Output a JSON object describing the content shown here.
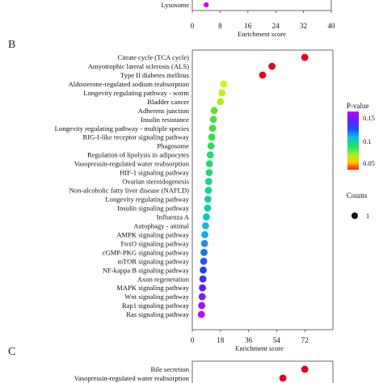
{
  "panels": {
    "a": {
      "terms": [
        "Lysosome"
      ],
      "enrichment": [
        4
      ],
      "pvalue_colors": [
        "#d300ff"
      ],
      "xticks": [
        "0",
        "8",
        "16",
        "24",
        "32",
        "40"
      ],
      "xlim": [
        0,
        40
      ],
      "xlabel": "Enrichment score"
    },
    "b": {
      "letter": "B",
      "xlabel": "Enrichment score",
      "xticks": [
        "0",
        "18",
        "36",
        "54",
        "72"
      ],
      "xlim": [
        0,
        90
      ]
    },
    "c": {
      "letter": "C",
      "terms": [
        "Bile secretion",
        "Vasopressin-regulated water reabsorption"
      ],
      "enrichment": [
        72,
        58
      ],
      "pvalue_colors": [
        "#e8001d",
        "#e8001d"
      ]
    }
  },
  "legend": {
    "pvalue_title": "P-value",
    "pvalue_ticks": [
      "0.15",
      "0.1",
      "0.05"
    ],
    "counts_title": "Counts",
    "counts_value": "1"
  },
  "chart_data": {
    "type": "scatter",
    "title": "",
    "xlabel": "Enrichment score",
    "ylabel": "",
    "xlim": [
      0,
      90
    ],
    "color_scale": "P-value",
    "size_scale": "Counts",
    "categories": [
      "Citrate cycle (TCA cycle)",
      "Amyotrophic lateral sclerosis (ALS)",
      "Type II diabetes mellitus",
      "Aldosterone-regulated sodium reabsorption",
      "Longevity regulating pathway - worm",
      "Bladder cancer",
      "Adherens junction",
      "Insulin resistance",
      "Longevity regulating pathway - multiple species",
      "RIG-I-like receptor signaling pathway",
      "Phagosome",
      "Regulation of lipolysis in adipocytes",
      "Vasopressin-regulated water reabsorption",
      "HIF-1 signaling pathway",
      "Ovarian steroidogenesis",
      "Non-alcoholic fatty liver disease (NAFLD)",
      "Longevity regulating pathway",
      "Insulin signaling pathway",
      "Influenza A",
      "Autophagy - animal",
      "AMPK signaling pathway",
      "FoxO signaling pathway",
      "cGMP-PKG signaling pathway",
      "mTOR signaling pathway",
      "NF-kappa B signaling pathway",
      "Axon regeneration",
      "MAPK signaling pathway",
      "Wnt signaling pathway",
      "Rap1 signaling pathway",
      "Ras signaling pathway"
    ],
    "values": [
      72,
      51,
      45,
      20,
      19,
      18,
      14,
      13.5,
      13,
      12.5,
      12,
      11.5,
      11,
      10.8,
      10.5,
      10.3,
      10,
      9.8,
      9,
      8.5,
      8,
      7.8,
      7.5,
      7.3,
      7,
      6.8,
      6.5,
      6.3,
      6,
      5.8
    ],
    "colors": [
      "#e8001d",
      "#e8001d",
      "#e8001d",
      "#d8f020",
      "#c4ee1c",
      "#b4ea1c",
      "#5ee03a",
      "#4ede40",
      "#42dc46",
      "#38da52",
      "#30d85e",
      "#2ad866",
      "#26d672",
      "#22d47e",
      "#1ed28a",
      "#1ad096",
      "#16cea4",
      "#14cab2",
      "#14c4c2",
      "#16bcd2",
      "#1aa8e6",
      "#1e8cee",
      "#2070f0",
      "#2258f2",
      "#2440f4",
      "#3a30f6",
      "#6020f8",
      "#8418fa",
      "#a410fc",
      "#c008fe"
    ],
    "counts": [
      1,
      1,
      1,
      1,
      1,
      1,
      1,
      1,
      1,
      1,
      1,
      1,
      1,
      1,
      1,
      1,
      1,
      1,
      1,
      1,
      1,
      1,
      1,
      1,
      1,
      1,
      1,
      1,
      1,
      1
    ]
  }
}
